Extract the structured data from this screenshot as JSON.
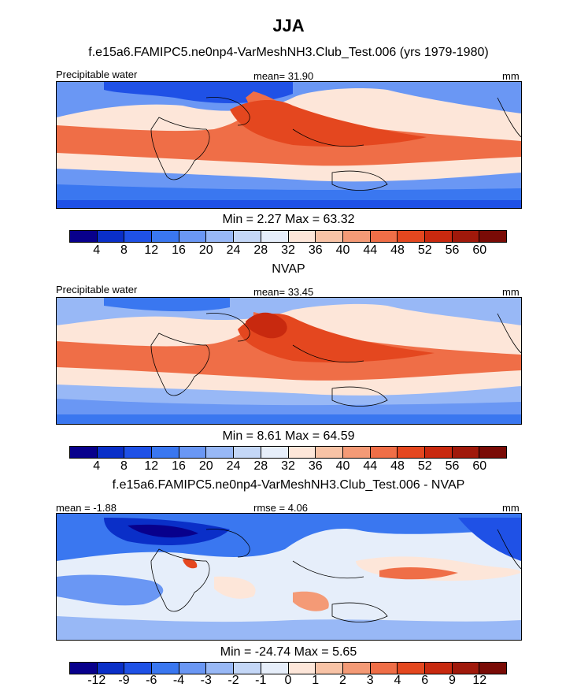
{
  "figure": {
    "title": "JJA"
  },
  "palettes": {
    "abs": [
      "#08008c",
      "#0a2fc8",
      "#1f51e6",
      "#3a77f0",
      "#6a97f4",
      "#98b8f6",
      "#c4d7f7",
      "#e6eefa",
      "#fde6d9",
      "#f8c3a6",
      "#f49a76",
      "#ef6e47",
      "#e4471f",
      "#c8290f",
      "#a0190b",
      "#7a0b06"
    ],
    "diff": [
      "#08008c",
      "#0a2fc8",
      "#1f51e6",
      "#3a77f0",
      "#6a97f4",
      "#98b8f6",
      "#c4d7f7",
      "#e6eefa",
      "#fde6d9",
      "#f8c3a6",
      "#f49a76",
      "#ef6e47",
      "#e4471f",
      "#c8290f",
      "#a0190b",
      "#7a0b06"
    ]
  },
  "panels": [
    {
      "title": "f.e15a6.FAMIPC5.ne0np4-VarMeshNH3.Club_Test.006 (yrs 1979-1980)",
      "left_label": "Precipitable water",
      "center_label": "mean=  31.90",
      "right_label": "mm",
      "minmax": "Min =   2.27 Max =  63.32",
      "ticks": [
        "4",
        "8",
        "12",
        "16",
        "20",
        "24",
        "28",
        "32",
        "36",
        "40",
        "44",
        "48",
        "52",
        "56",
        "60"
      ]
    },
    {
      "title": "NVAP",
      "left_label": "Precipitable water",
      "center_label": "mean=  33.45",
      "right_label": "mm",
      "minmax": "Min =   8.61 Max =  64.59",
      "ticks": [
        "4",
        "8",
        "12",
        "16",
        "20",
        "24",
        "28",
        "32",
        "36",
        "40",
        "44",
        "48",
        "52",
        "56",
        "60"
      ]
    },
    {
      "title": "f.e15a6.FAMIPC5.ne0np4-VarMeshNH3.Club_Test.006 - NVAP",
      "left_label": "mean =  -1.88",
      "center_label": "rmse =   4.06",
      "right_label": "mm",
      "minmax": "Min = -24.74 Max =   5.65",
      "ticks": [
        "-12",
        "-9",
        "-6",
        "-4",
        "-3",
        "-2",
        "-1",
        "0",
        "1",
        "2",
        "3",
        "4",
        "6",
        "9",
        "12"
      ]
    }
  ]
}
